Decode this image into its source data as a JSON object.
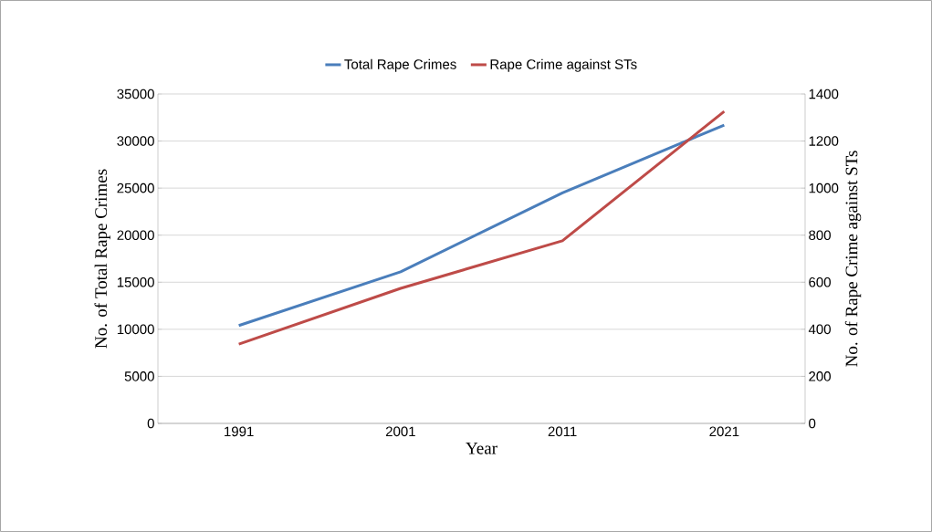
{
  "chart_data": {
    "type": "line",
    "xlabel": "Year",
    "ylabel": "No. of Total Rape Crimes",
    "y2label": "No. of Rape Crime against STs",
    "categories": [
      "1991",
      "2001",
      "2011",
      "2021"
    ],
    "series": [
      {
        "name": "Total Rape Crimes",
        "color": "#4a7ebb",
        "values": [
          10400,
          16100,
          24500,
          31700
        ]
      },
      {
        "name": "Rape Crime against STs",
        "color": "#be4b48",
        "axis": "y2",
        "values": [
          337,
          574,
          776,
          1326
        ]
      }
    ],
    "ylim": [
      0,
      35000
    ],
    "yticks": [
      0,
      5000,
      10000,
      15000,
      20000,
      25000,
      30000,
      35000
    ],
    "y2lim": [
      0,
      1400
    ],
    "y2ticks": [
      0,
      200,
      400,
      600,
      800,
      1000,
      1200,
      1400
    ],
    "grid": "y",
    "legend": "top"
  }
}
